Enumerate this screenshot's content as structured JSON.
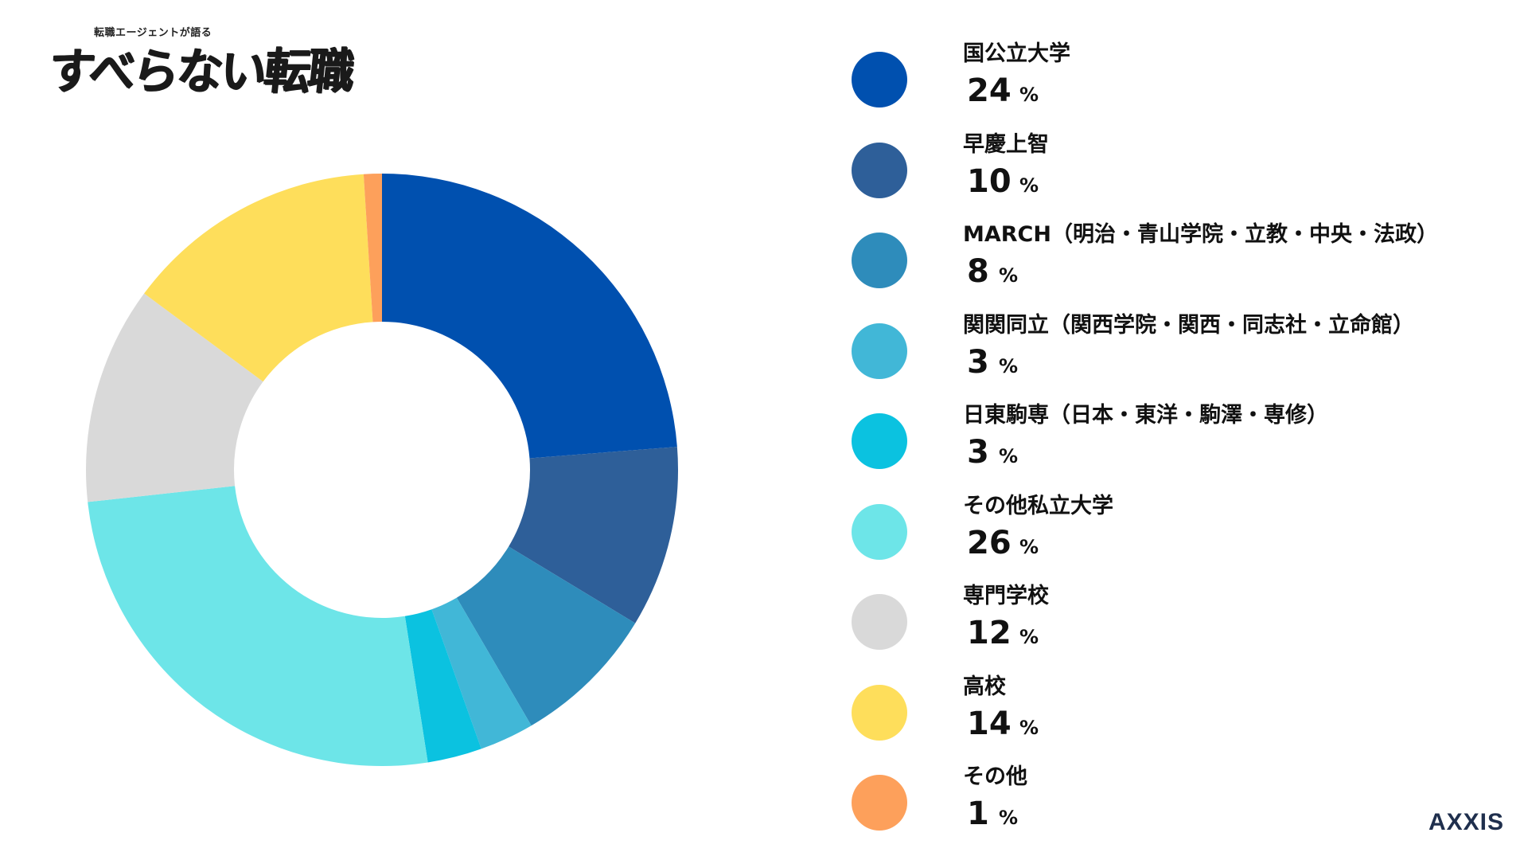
{
  "logo": {
    "tagline": "転職エージェントが語る",
    "title": "すべらない転職"
  },
  "brand": "AXXIS",
  "chart_data": {
    "type": "donut",
    "unit": "%",
    "start_angle_deg": 0,
    "direction": "clockwise",
    "inner_radius_ratio": 0.5,
    "categories": [
      "国公立大学",
      "早慶上智",
      "MARCH（明治・青山学院・立教・中央・法政）",
      "関関同立（関西学院・関西・同志社・立命館）",
      "日東駒専（日本・東洋・駒澤・専修）",
      "その他私立大学",
      "専門学校",
      "高校",
      "その他"
    ],
    "values": [
      24,
      10,
      8,
      3,
      3,
      26,
      12,
      14,
      1
    ],
    "colors": [
      "#0050af",
      "#2e5f99",
      "#2e8cbb",
      "#41b7d7",
      "#0bc2e0",
      "#6de5e8",
      "#d9d9d9",
      "#fede5b",
      "#fda05b"
    ],
    "legend_position": "right"
  }
}
